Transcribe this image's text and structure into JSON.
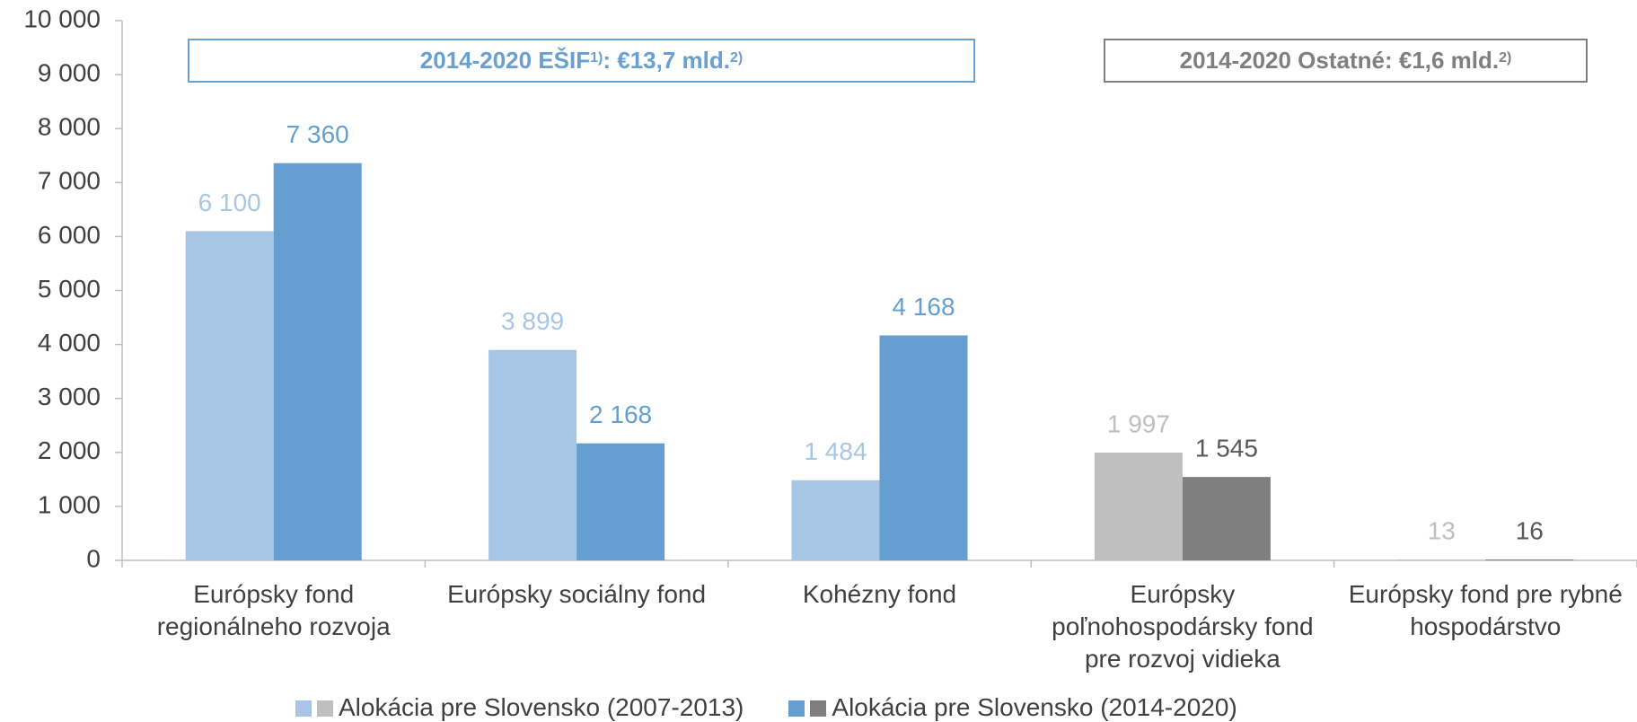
{
  "chart_data": {
    "type": "bar",
    "categories": [
      "Európsky fond regionálneho rozvoja",
      "Európsky sociálny fond",
      "Kohézny fond",
      "Európsky poľnohospodársky fond pre rozvoj vidieka",
      "Európsky fond pre rybné hospodárstvo"
    ],
    "series": [
      {
        "name": "Alokácia pre Slovensko (2007-2013)",
        "color": [
          "#a7c6e6",
          "#a7c6e6",
          "#a7c6e6",
          "#bfbfbf",
          "#bfbfbf"
        ],
        "values": [
          6100,
          3899,
          1484,
          1997,
          13
        ],
        "value_labels": [
          "6 100",
          "3 899",
          "1 484",
          "1 997",
          "13"
        ]
      },
      {
        "name": "Alokácia pre Slovensko (2014-2020)",
        "color": [
          "#659fd1",
          "#659fd1",
          "#659fd1",
          "#7f7f7f",
          "#7f7f7f"
        ],
        "values": [
          7360,
          2168,
          4168,
          1545,
          16
        ],
        "value_labels": [
          "7 360",
          "2 168",
          "4 168",
          "1 545",
          "16"
        ]
      }
    ],
    "ylim": [
      0,
      10000
    ],
    "yticks": [
      0,
      {
        "value": 1000,
        "label": "1 000"
      },
      {
        "value": 2000,
        "label": "2 000"
      },
      {
        "value": 3000,
        "label": "3 000"
      },
      {
        "value": 4000,
        "label": "4 000"
      },
      {
        "value": 5000,
        "label": "5 000"
      },
      {
        "value": 6000,
        "label": "6 000"
      },
      {
        "value": 7000,
        "label": "7 000"
      },
      {
        "value": 8000,
        "label": "8 000"
      },
      {
        "value": 9000,
        "label": "9 000"
      },
      {
        "value": 10000,
        "label": "10 000"
      }
    ],
    "annotations": [
      {
        "parts": [
          "2014-2020 EŠIF",
          "1)",
          ": €13,7 mld.",
          "2)"
        ],
        "color": "#6a9fd1"
      },
      {
        "parts": [
          "2014-2020 Ostatné: €1,6 mld.",
          "2)"
        ],
        "color": "#7f7f7f"
      }
    ]
  }
}
